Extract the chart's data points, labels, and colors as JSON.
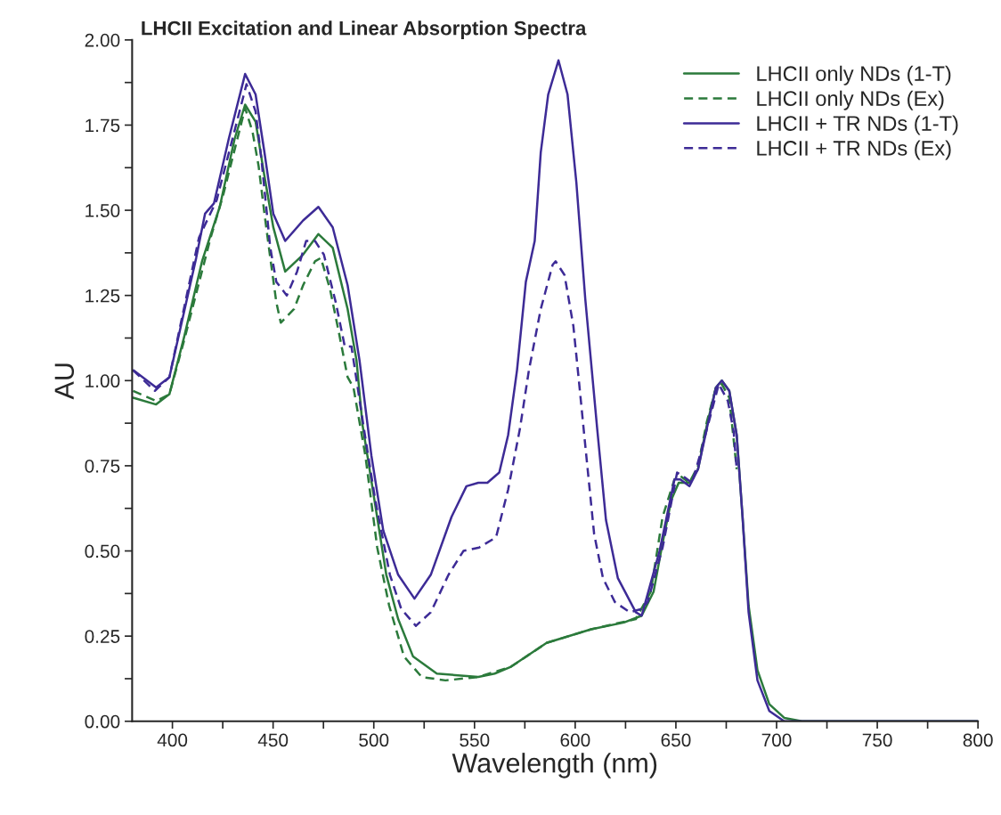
{
  "chart_data": {
    "type": "line",
    "title": "LHCII Excitation and Linear Absorption Spectra",
    "xlabel": "Wavelength (nm)",
    "ylabel": "AU",
    "xlim": [
      380,
      800
    ],
    "ylim": [
      0,
      2
    ],
    "xticks": [
      400,
      {
        "value": 425,
        "label": null
      },
      450,
      {
        "value": 475,
        "label": null
      },
      500,
      {
        "value": 525,
        "label": null
      },
      550,
      {
        "value": 575,
        "label": null
      },
      600,
      {
        "value": 625,
        "label": null
      },
      650,
      {
        "value": 675,
        "label": null
      },
      700,
      {
        "value": 725,
        "label": null
      },
      750,
      {
        "value": 775,
        "label": null
      },
      800
    ],
    "yticks": [
      {
        "value": 0,
        "label": "0.00"
      },
      {
        "value": 0.125,
        "label": null
      },
      {
        "value": 0.25,
        "label": "0.25"
      },
      {
        "value": 0.375,
        "label": null
      },
      {
        "value": 0.5,
        "label": "0.50"
      },
      {
        "value": 0.625,
        "label": null
      },
      {
        "value": 0.75,
        "label": "0.75"
      },
      {
        "value": 0.875,
        "label": null
      },
      {
        "value": 1,
        "label": "1.00"
      },
      {
        "value": 1.125,
        "label": null
      },
      {
        "value": 1.25,
        "label": "1.25"
      },
      {
        "value": 1.375,
        "label": null
      },
      {
        "value": 1.5,
        "label": "1.50"
      },
      {
        "value": 1.625,
        "label": null
      },
      {
        "value": 1.75,
        "label": "1.75"
      },
      {
        "value": 1.875,
        "label": null
      },
      {
        "value": 2,
        "label": "2.00"
      }
    ],
    "legend": "top right",
    "marker": "none",
    "series": [
      {
        "name": "LHCII only NDs (1-T)",
        "color": "#2b7a3b",
        "line_style": "solid",
        "x": [
          380.5,
          391.9,
          398.5,
          405.9,
          414.7,
          423.5,
          430.9,
          436.1,
          441.3,
          445.7,
          450.1,
          456,
          464.9,
          472.5,
          479.6,
          487,
          491.4,
          494.4,
          500.3,
          506.2,
          512.1,
          519.5,
          531.3,
          551.9,
          560,
          568.1,
          585.8,
          607.9,
          624.2,
          633,
          638.9,
          643.3,
          647.7,
          651.4,
          656.6,
          661,
          665.4,
          669.9,
          672.8,
          676.5,
          680.2,
          683.1,
          686.1,
          690.5,
          696.4,
          703.8,
          712.6,
          800
        ],
        "values": [
          0.95,
          0.93,
          0.96,
          1.13,
          1.35,
          1.51,
          1.71,
          1.81,
          1.76,
          1.6,
          1.45,
          1.32,
          1.37,
          1.43,
          1.39,
          1.21,
          1.06,
          0.87,
          0.65,
          0.43,
          0.3,
          0.19,
          0.14,
          0.13,
          0.14,
          0.16,
          0.23,
          0.27,
          0.29,
          0.31,
          0.38,
          0.52,
          0.65,
          0.7,
          0.7,
          0.74,
          0.87,
          0.98,
          1.0,
          0.97,
          0.84,
          0.6,
          0.34,
          0.15,
          0.05,
          0.01,
          0.0,
          0.0
        ]
      },
      {
        "name": "LHCII only NDs (Ex)",
        "color": "#2b7a3b",
        "line_style": "dashed",
        "x": [
          380.5,
          391.9,
          398.5,
          405.9,
          419,
          425,
          436.1,
          439.8,
          442.8,
          445.7,
          448.6,
          451.6,
          453.8,
          460.4,
          464.9,
          470.8,
          473.7,
          478.2,
          482.7,
          487,
          489.9,
          495.8,
          501.7,
          507.6,
          515,
          523.8,
          535.6,
          551.9,
          568.1,
          585.8,
          607.9,
          630.1,
          637.5,
          643.4,
          649.3,
          652.2,
          656.7,
          661,
          665.4,
          669.9,
          672.8,
          676.5,
          680.2
        ],
        "values": [
          0.97,
          0.94,
          0.96,
          1.12,
          1.42,
          1.54,
          1.8,
          1.73,
          1.63,
          1.49,
          1.36,
          1.23,
          1.17,
          1.21,
          1.28,
          1.35,
          1.36,
          1.27,
          1.14,
          1.01,
          0.98,
          0.78,
          0.51,
          0.34,
          0.19,
          0.13,
          0.12,
          0.13,
          0.16,
          0.23,
          0.27,
          0.3,
          0.38,
          0.6,
          0.71,
          0.72,
          0.7,
          0.75,
          0.88,
          0.98,
          0.99,
          0.95,
          0.74
        ]
      },
      {
        "name": "LHCII + TR NDs (1-T)",
        "color": "#3d2b96",
        "line_style": "solid",
        "x": [
          380.7,
          391.9,
          398.5,
          411.8,
          416.2,
          420.6,
          428,
          436.1,
          441.3,
          445.7,
          450.1,
          456,
          464.9,
          472.5,
          479.6,
          487,
          492.9,
          498.8,
          504.7,
          512.1,
          520.2,
          528.3,
          538.6,
          546,
          551.9,
          556.4,
          562.3,
          566.7,
          571.1,
          575.5,
          579.9,
          582.9,
          586.6,
          591.7,
          596.2,
          600.6,
          605,
          610.9,
          615.3,
          621.2,
          630.1,
          633,
          641.9,
          649.3,
          652.2,
          656.7,
          661,
          665.4,
          669.9,
          672.8,
          676.5,
          680.2,
          683.1,
          686.1,
          690.5,
          696.4,
          703.8,
          800
        ],
        "values": [
          1.03,
          0.98,
          1.01,
          1.36,
          1.49,
          1.52,
          1.71,
          1.9,
          1.84,
          1.67,
          1.49,
          1.41,
          1.47,
          1.51,
          1.45,
          1.28,
          1.06,
          0.78,
          0.56,
          0.43,
          0.36,
          0.43,
          0.6,
          0.69,
          0.7,
          0.7,
          0.73,
          0.84,
          1.03,
          1.29,
          1.41,
          1.67,
          1.84,
          1.94,
          1.84,
          1.58,
          1.24,
          0.86,
          0.59,
          0.42,
          0.32,
          0.31,
          0.5,
          0.71,
          0.71,
          0.69,
          0.74,
          0.86,
          0.98,
          1.0,
          0.97,
          0.84,
          0.6,
          0.32,
          0.12,
          0.03,
          0.0,
          0.0
        ]
      },
      {
        "name": "LHCII + TR NDs (Ex)",
        "color": "#3d2b96",
        "line_style": "dashed",
        "x": [
          380.5,
          391.3,
          398.5,
          413.2,
          422,
          436.8,
          441.3,
          444.2,
          448.6,
          451.6,
          456.8,
          461.9,
          466.4,
          470.8,
          475.2,
          481.1,
          485.6,
          488.9,
          494.8,
          500.7,
          508,
          513.6,
          520.9,
          528.3,
          537.1,
          544.5,
          552.3,
          560.7,
          566.7,
          572.6,
          577,
          582.9,
          588.8,
          590.3,
          594.7,
          599.1,
          602,
          605,
          609.4,
          613.8,
          619.7,
          627.1,
          633,
          636,
          643.4,
          650.6,
          653.5,
          658,
          662.4,
          671.3,
          675.8,
          678.7,
          680.2
        ],
        "values": [
          1.03,
          0.97,
          1.01,
          1.42,
          1.53,
          1.87,
          1.79,
          1.65,
          1.39,
          1.29,
          1.25,
          1.32,
          1.41,
          1.41,
          1.37,
          1.23,
          1.1,
          1.1,
          0.87,
          0.65,
          0.43,
          0.33,
          0.28,
          0.32,
          0.43,
          0.5,
          0.51,
          0.54,
          0.68,
          0.86,
          1.03,
          1.21,
          1.34,
          1.35,
          1.31,
          1.16,
          0.99,
          0.81,
          0.55,
          0.42,
          0.35,
          0.32,
          0.33,
          0.35,
          0.51,
          0.73,
          0.72,
          0.7,
          0.79,
          0.99,
          0.94,
          0.85,
          0.74
        ]
      }
    ]
  }
}
